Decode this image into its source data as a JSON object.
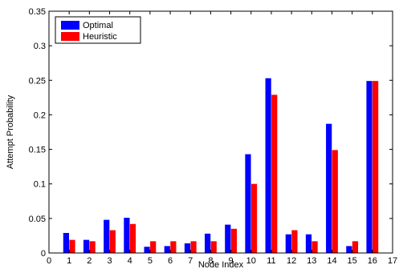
{
  "chart_data": {
    "type": "bar",
    "xlabel": "Node Index",
    "ylabel": "Attempt Probability",
    "xlim": [
      0,
      17
    ],
    "ylim": [
      0,
      0.35
    ],
    "xticks": [
      0,
      1,
      2,
      3,
      4,
      5,
      6,
      7,
      8,
      9,
      10,
      11,
      12,
      13,
      14,
      15,
      16,
      17
    ],
    "yticks": [
      0,
      0.05,
      0.1,
      0.15,
      0.2,
      0.25,
      0.3,
      0.35
    ],
    "ytick_labels": [
      "0",
      "0.05",
      "0.1",
      "0.15",
      "0.2",
      "0.25",
      "0.3",
      "0.35"
    ],
    "categories": [
      1,
      2,
      3,
      4,
      5,
      6,
      7,
      8,
      9,
      10,
      11,
      12,
      13,
      14,
      15,
      16
    ],
    "series": [
      {
        "name": "Optimal",
        "color": "#0000ff",
        "values": [
          0.029,
          0.019,
          0.048,
          0.051,
          0.009,
          0.01,
          0.014,
          0.028,
          0.041,
          0.143,
          0.253,
          0.027,
          0.027,
          0.187,
          0.01,
          0.249
        ]
      },
      {
        "name": "Heuristic",
        "color": "#ff0000",
        "values": [
          0.019,
          0.017,
          0.033,
          0.042,
          0.017,
          0.017,
          0.017,
          0.017,
          0.035,
          0.1,
          0.229,
          0.033,
          0.017,
          0.149,
          0.017,
          0.249
        ]
      }
    ],
    "legend_position": "top-left",
    "grid": false
  }
}
